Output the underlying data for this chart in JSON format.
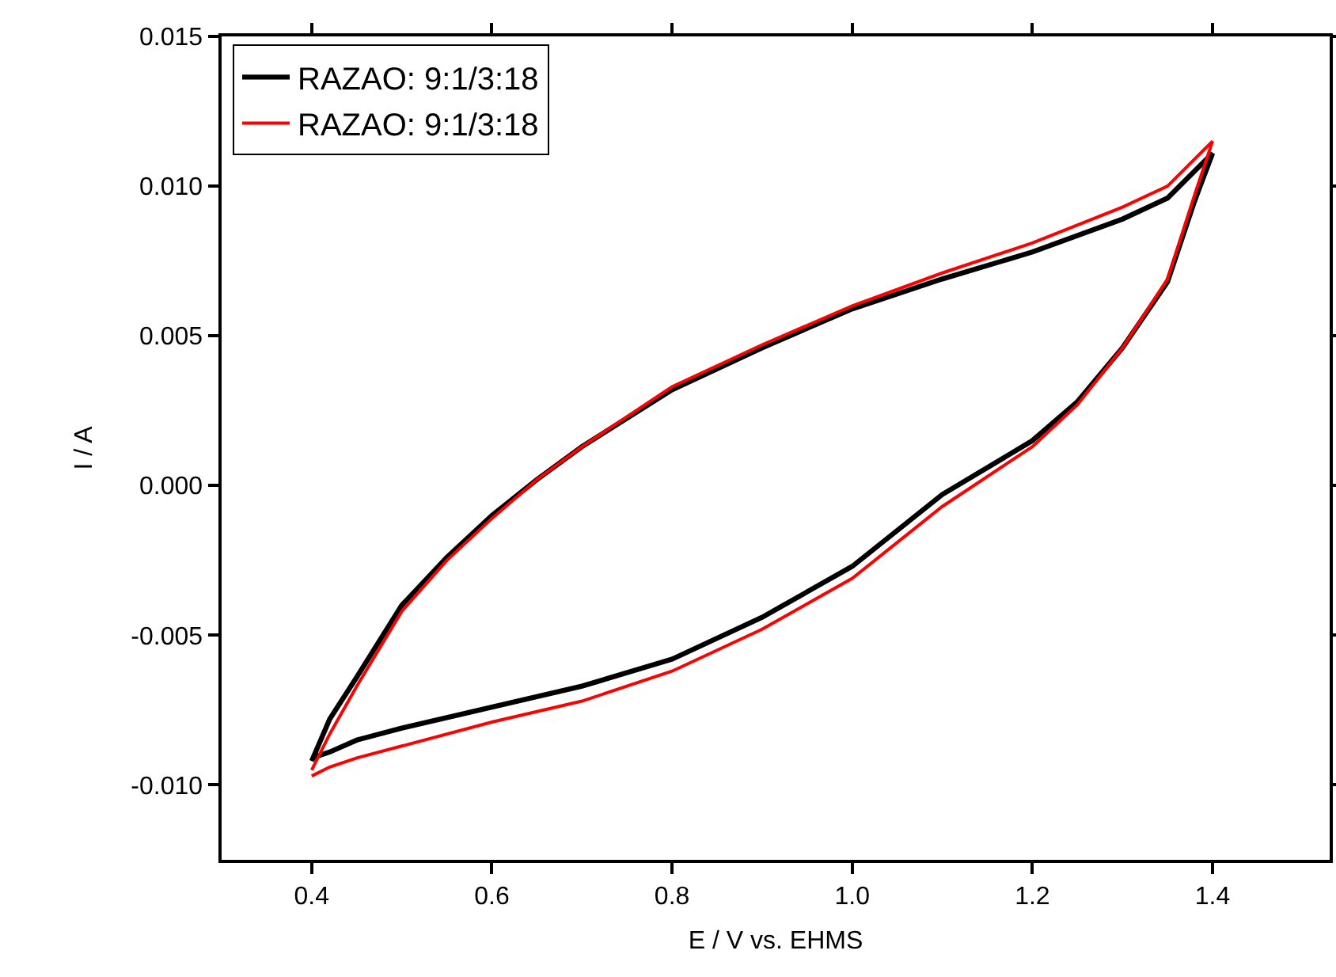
{
  "chart_data": {
    "type": "line",
    "xlabel": "E / V vs. EHMS",
    "ylabel": "I / A",
    "xlim": [
      0.3,
      1.53
    ],
    "ylim": [
      -0.0125,
      0.015
    ],
    "xticks": [
      0.4,
      0.6,
      0.8,
      {
        "value": 1,
        "label": "1.0"
      },
      1.2,
      1.4
    ],
    "yticks": [
      {
        "value": -0.01,
        "label": "-0.010"
      },
      {
        "value": -0.005,
        "label": "-0.005"
      },
      {
        "value": 0,
        "label": "0.000"
      },
      {
        "value": 0.005,
        "label": "0.005"
      },
      {
        "value": 0.01,
        "label": "0.010"
      },
      {
        "value": 0.015,
        "label": "0.015"
      }
    ],
    "grid": false,
    "legend": "top left",
    "marker": "none",
    "line_style": "solid",
    "series": [
      {
        "name": "RAZAO: 9:1/3:18",
        "color": "#000000",
        "x": [
          0.4,
          0.42,
          0.45,
          0.5,
          0.55,
          0.6,
          0.65,
          0.7,
          0.8,
          0.9,
          1.0,
          1.1,
          1.2,
          1.3,
          1.35,
          1.4,
          1.38,
          1.35,
          1.3,
          1.25,
          1.2,
          1.1,
          1.0,
          0.9,
          0.8,
          0.7,
          0.6,
          0.5,
          0.45,
          0.42,
          0.4
        ],
        "values": [
          -0.0092,
          -0.0078,
          -0.0064,
          -0.004,
          -0.0024,
          -0.001,
          0.0002,
          0.0013,
          0.0032,
          0.0046,
          0.0059,
          0.0069,
          0.0078,
          0.0089,
          0.0096,
          0.0111,
          0.0095,
          0.0068,
          0.0046,
          0.0028,
          0.0015,
          -0.0003,
          -0.0027,
          -0.0044,
          -0.0058,
          -0.0067,
          -0.0074,
          -0.0081,
          -0.0085,
          -0.0089,
          -0.0091
        ]
      },
      {
        "name": "RAZAO: 9:1/3:18",
        "color": "#ff0000",
        "x": [
          0.4,
          0.42,
          0.45,
          0.5,
          0.55,
          0.6,
          0.65,
          0.7,
          0.8,
          0.9,
          1.0,
          1.1,
          1.2,
          1.3,
          1.35,
          1.4,
          1.38,
          1.35,
          1.3,
          1.25,
          1.2,
          1.1,
          1.0,
          0.9,
          0.8,
          0.7,
          0.6,
          0.5,
          0.45,
          0.42,
          0.4
        ],
        "values": [
          -0.0095,
          -0.0083,
          -0.0067,
          -0.0042,
          -0.0025,
          -0.0011,
          0.0002,
          0.0013,
          0.0033,
          0.0047,
          0.006,
          0.0071,
          0.0081,
          0.0093,
          0.01,
          0.0115,
          0.0097,
          0.0069,
          0.0046,
          0.0027,
          0.0013,
          -0.0007,
          -0.0031,
          -0.0048,
          -0.0062,
          -0.0072,
          -0.0079,
          -0.0087,
          -0.0091,
          -0.0094,
          -0.0097
        ]
      }
    ]
  }
}
